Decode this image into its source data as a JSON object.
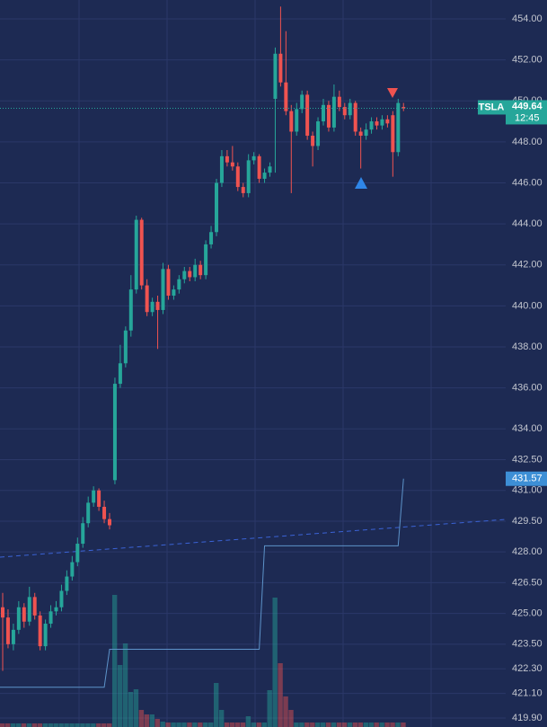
{
  "chart_data": {
    "type": "candlestick",
    "symbol": "TSLA",
    "countdown": "12:45",
    "ylim": [
      419.46,
      454.92
    ],
    "yticks": [
      {
        "value": 454,
        "label": "454.00"
      },
      {
        "value": 452,
        "label": "452.00"
      },
      {
        "value": 450,
        "label": "450.00"
      },
      {
        "value": 448,
        "label": "448.00"
      },
      {
        "value": 446,
        "label": "446.00"
      },
      {
        "value": 444,
        "label": "444.00"
      },
      {
        "value": 442,
        "label": "442.00"
      },
      {
        "value": 440,
        "label": "440.00"
      },
      {
        "value": 438,
        "label": "438.00"
      },
      {
        "value": 436,
        "label": "436.00"
      },
      {
        "value": 434,
        "label": "434.00"
      },
      {
        "value": 432.5,
        "label": "432.50"
      },
      {
        "value": 431,
        "label": "431.00"
      },
      {
        "value": 429.5,
        "label": "429.50"
      },
      {
        "value": 428,
        "label": "428.00"
      },
      {
        "value": 426.5,
        "label": "426.50"
      },
      {
        "value": 425,
        "label": "425.00"
      },
      {
        "value": 423.5,
        "label": "423.50"
      },
      {
        "value": 422.3,
        "label": "422.30"
      },
      {
        "value": 421.1,
        "label": "421.10"
      },
      {
        "value": 419.9,
        "label": "419.90"
      }
    ],
    "grid": true,
    "up_color": "#26a69a",
    "down_color": "#ef5350",
    "candles": [
      [
        425.3,
        426.0,
        422.2,
        424.8
      ],
      [
        424.8,
        425.2,
        423.3,
        423.5
      ],
      [
        423.5,
        424.5,
        423.2,
        424.2
      ],
      [
        424.2,
        425.6,
        424.0,
        425.3
      ],
      [
        425.3,
        425.5,
        424.3,
        424.6
      ],
      [
        424.6,
        426.3,
        424.4,
        425.8
      ],
      [
        425.8,
        426.0,
        424.7,
        424.9
      ],
      [
        424.9,
        425.1,
        423.2,
        423.4
      ],
      [
        423.4,
        424.7,
        423.2,
        424.5
      ],
      [
        424.5,
        425.4,
        424.3,
        425.1
      ],
      [
        425.1,
        425.6,
        424.9,
        425.3
      ],
      [
        425.3,
        426.4,
        425.1,
        426.1
      ],
      [
        426.1,
        427.1,
        425.9,
        426.8
      ],
      [
        426.8,
        427.8,
        426.6,
        427.5
      ],
      [
        427.5,
        428.7,
        427.3,
        428.4
      ],
      [
        428.4,
        429.7,
        428.2,
        429.4
      ],
      [
        429.4,
        430.7,
        429.2,
        430.4
      ],
      [
        430.4,
        431.2,
        430.2,
        431.0
      ],
      [
        431.0,
        431.1,
        430.0,
        430.2
      ],
      [
        430.2,
        430.5,
        429.4,
        429.6
      ],
      [
        429.6,
        429.9,
        429.1,
        429.3
      ],
      [
        431.5,
        436.5,
        431.3,
        436.2
      ],
      [
        436.2,
        438.1,
        436.0,
        437.2
      ],
      [
        437.2,
        439.0,
        437.0,
        438.8
      ],
      [
        438.8,
        441.5,
        438.5,
        440.8
      ],
      [
        440.8,
        444.4,
        440.6,
        444.2
      ],
      [
        444.2,
        444.3,
        440.8,
        441.0
      ],
      [
        441.0,
        441.3,
        439.5,
        439.7
      ],
      [
        439.7,
        440.4,
        439.5,
        440.2
      ],
      [
        440.2,
        440.5,
        437.9,
        439.8
      ],
      [
        439.8,
        442.1,
        439.6,
        441.8
      ],
      [
        441.8,
        442.0,
        440.3,
        440.5
      ],
      [
        440.5,
        441.0,
        440.3,
        440.8
      ],
      [
        440.8,
        441.5,
        440.6,
        441.3
      ],
      [
        441.3,
        441.9,
        441.1,
        441.7
      ],
      [
        441.7,
        441.9,
        441.2,
        441.4
      ],
      [
        441.4,
        442.3,
        441.2,
        442.0
      ],
      [
        442.0,
        442.2,
        441.3,
        441.5
      ],
      [
        441.5,
        443.2,
        441.3,
        443.0
      ],
      [
        443.0,
        443.9,
        442.8,
        443.6
      ],
      [
        443.6,
        446.2,
        443.4,
        446.0
      ],
      [
        446.0,
        447.6,
        445.8,
        447.3
      ],
      [
        447.3,
        447.6,
        446.8,
        447.0
      ],
      [
        447.0,
        447.8,
        446.6,
        446.8
      ],
      [
        446.8,
        447.0,
        445.6,
        445.8
      ],
      [
        445.8,
        446.0,
        445.3,
        445.5
      ],
      [
        445.5,
        447.4,
        445.3,
        447.1
      ],
      [
        447.1,
        447.5,
        446.9,
        447.3
      ],
      [
        447.3,
        447.4,
        446.0,
        446.2
      ],
      [
        446.2,
        446.7,
        446.0,
        446.5
      ],
      [
        446.5,
        447.0,
        446.3,
        446.8
      ],
      [
        450.1,
        452.6,
        446.5,
        452.3
      ],
      [
        452.3,
        454.6,
        450.7,
        450.9
      ],
      [
        450.9,
        453.4,
        449.3,
        449.5
      ],
      [
        449.5,
        449.8,
        445.5,
        448.5
      ],
      [
        448.5,
        449.9,
        448.3,
        449.6
      ],
      [
        449.6,
        450.5,
        449.4,
        450.3
      ],
      [
        450.3,
        450.5,
        448.1,
        448.3
      ],
      [
        448.3,
        448.5,
        446.8,
        447.8
      ],
      [
        447.8,
        449.2,
        447.6,
        449.0
      ],
      [
        449.0,
        450.1,
        448.8,
        449.8
      ],
      [
        449.8,
        450.0,
        448.5,
        448.7
      ],
      [
        448.7,
        450.8,
        448.5,
        450.2
      ],
      [
        450.2,
        450.5,
        449.5,
        449.7
      ],
      [
        449.7,
        449.9,
        449.1,
        449.3
      ],
      [
        449.3,
        450.1,
        449.1,
        449.9
      ],
      [
        449.9,
        450.0,
        448.3,
        448.5
      ],
      [
        448.5,
        448.7,
        446.7,
        448.3
      ],
      [
        448.3,
        448.9,
        448.1,
        448.6
      ],
      [
        448.6,
        449.2,
        448.4,
        449.0
      ],
      [
        449.0,
        449.2,
        448.6,
        448.8
      ],
      [
        448.8,
        449.3,
        448.6,
        449.1
      ],
      [
        449.1,
        449.3,
        448.7,
        448.9
      ],
      [
        449.3,
        449.5,
        446.3,
        447.5
      ],
      [
        447.5,
        450.1,
        447.3,
        449.9
      ],
      [
        449.7,
        449.9,
        449.5,
        449.64
      ]
    ],
    "volume": [
      4,
      4,
      4,
      4,
      4,
      4,
      4,
      4,
      4,
      4,
      4,
      4,
      4,
      4,
      4,
      4,
      4,
      4,
      4,
      4,
      4,
      147,
      69,
      93,
      39,
      42,
      19,
      14,
      14,
      9,
      6,
      5,
      5,
      5,
      5,
      5,
      5,
      5,
      5,
      5,
      49,
      19,
      5,
      5,
      5,
      5,
      12,
      5,
      5,
      5,
      41,
      144,
      71,
      34,
      19,
      5,
      5,
      5,
      5,
      5,
      5,
      5,
      5,
      5,
      5,
      5,
      5,
      5,
      5,
      5,
      5,
      5,
      5,
      5,
      5,
      5
    ],
    "indicator": {
      "color": "#5d93c9",
      "label_color": "#3d8fd6",
      "values": [
        421.4,
        421.4,
        421.4,
        421.4,
        421.4,
        421.4,
        421.4,
        421.4,
        421.4,
        421.4,
        421.4,
        421.4,
        421.4,
        421.4,
        421.4,
        421.4,
        421.4,
        421.4,
        421.4,
        421.4,
        423.25,
        423.25,
        423.25,
        423.25,
        423.25,
        423.25,
        423.25,
        423.25,
        423.25,
        423.25,
        423.25,
        423.25,
        423.25,
        423.25,
        423.25,
        423.25,
        423.25,
        423.25,
        423.25,
        423.25,
        423.25,
        423.25,
        423.25,
        423.25,
        423.25,
        423.25,
        423.25,
        423.25,
        423.25,
        428.3,
        428.3,
        428.3,
        428.3,
        428.3,
        428.3,
        428.3,
        428.3,
        428.3,
        428.3,
        428.3,
        428.3,
        428.3,
        428.3,
        428.3,
        428.3,
        428.3,
        428.3,
        428.3,
        428.3,
        428.3,
        428.3,
        428.3,
        428.3,
        428.3,
        428.3,
        431.57
      ]
    }
  }
}
